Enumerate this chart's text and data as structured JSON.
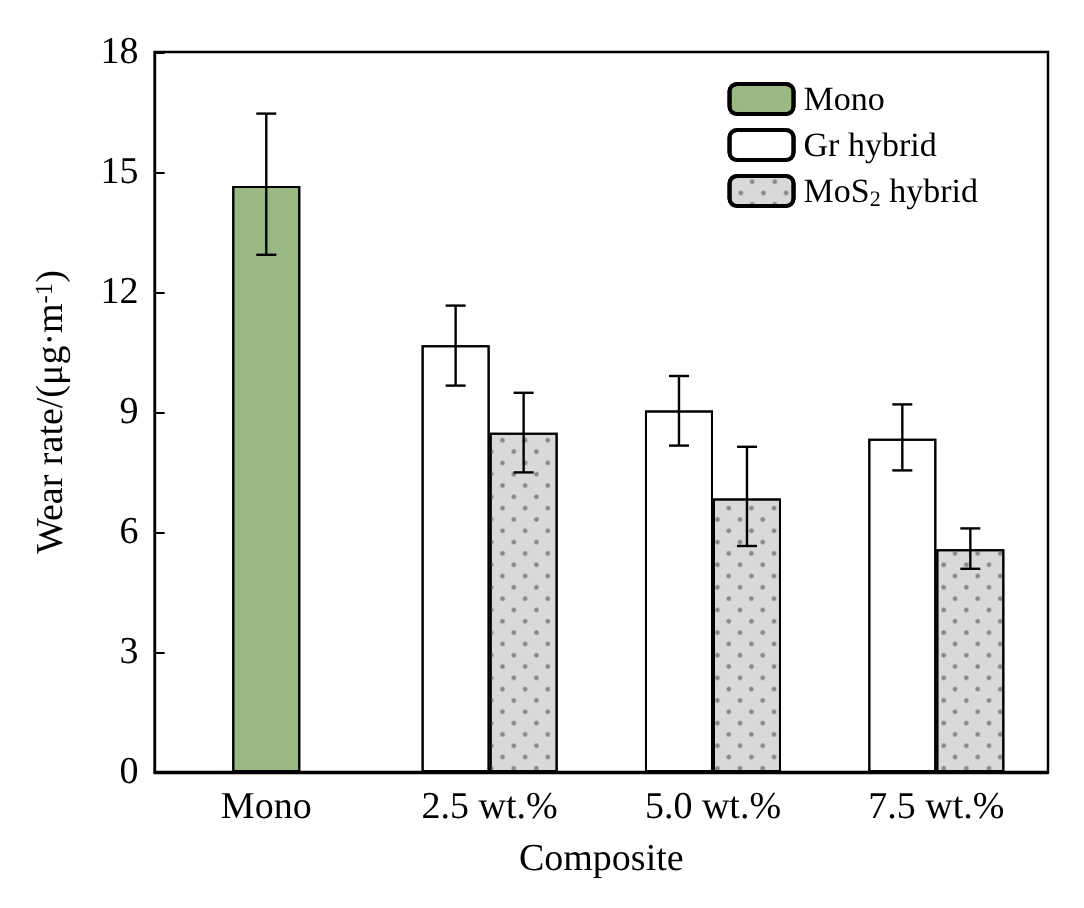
{
  "chart_data": {
    "type": "bar",
    "xlabel": "Composite",
    "ylabel": "Wear rate/(μg·m$^{-1}$)",
    "categories": [
      "Mono",
      "2.5 wt.%",
      "5.0 wt.%",
      "7.5 wt.%"
    ],
    "series": [
      {
        "name": "Mono",
        "color": "#9ab882",
        "values": [
          14.65,
          null,
          null,
          null
        ],
        "errors": [
          [
            12.93,
            16.46
          ],
          null,
          null,
          null
        ]
      },
      {
        "name": "Gr hybrid",
        "color": "#ffffff",
        "values": [
          null,
          10.67,
          9.04,
          8.33
        ],
        "errors": [
          null,
          [
            9.66,
            11.66
          ],
          [
            8.16,
            9.9
          ],
          [
            7.54,
            9.19
          ]
        ]
      },
      {
        "name": "MoS$_{2}$ hybrid",
        "color": "#d9d9d9",
        "values": [
          null,
          8.48,
          6.84,
          5.57
        ],
        "errors": [
          null,
          [
            7.49,
            9.48
          ],
          [
            5.65,
            8.13
          ],
          [
            5.08,
            6.09
          ]
        ]
      }
    ],
    "ylim": [
      0,
      18
    ],
    "yticks": [
      0,
      3,
      6,
      9,
      12,
      15,
      18
    ],
    "grid": false,
    "legend": "top right"
  }
}
